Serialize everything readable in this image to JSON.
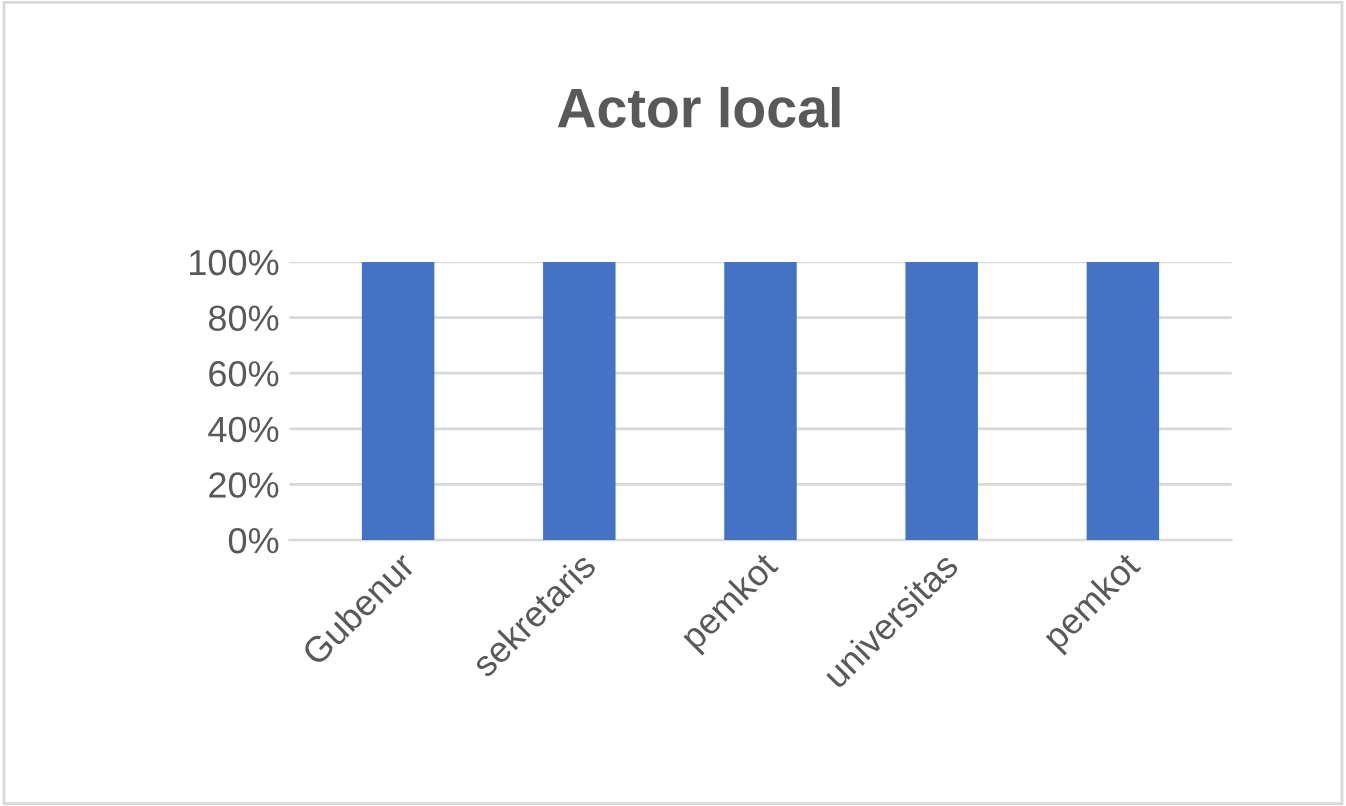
{
  "chart_data": {
    "type": "bar",
    "title": "Actor local",
    "categories": [
      "Gubenur",
      "sekretaris",
      "pemkot",
      "universitas",
      "pemkot"
    ],
    "values": [
      100,
      100,
      100,
      100,
      100
    ],
    "color": "#4472c4",
    "ylim": [
      0,
      100
    ],
    "yticks": [
      {
        "value": 0,
        "label": "0%"
      },
      {
        "value": 20,
        "label": "20%"
      },
      {
        "value": 40,
        "label": "40%"
      },
      {
        "value": 60,
        "label": "60%"
      },
      {
        "value": 80,
        "label": "80%"
      },
      {
        "value": 100,
        "label": "100%"
      }
    ],
    "grid": "y",
    "legend": false
  }
}
